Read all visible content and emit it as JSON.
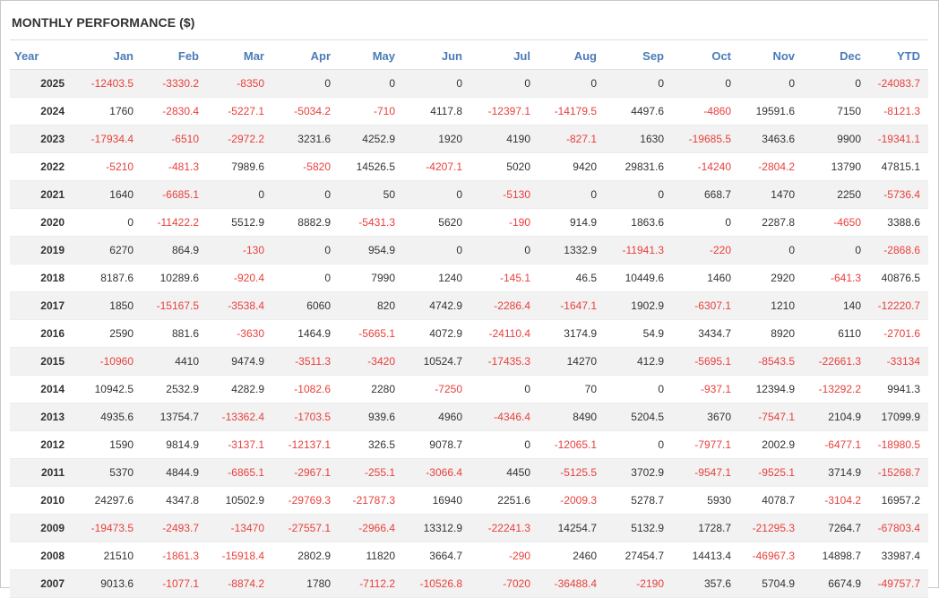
{
  "title": "MONTHLY PERFORMANCE ($)",
  "columns": [
    "Year",
    "Jan",
    "Feb",
    "Mar",
    "Apr",
    "May",
    "Jun",
    "Jul",
    "Aug",
    "Sep",
    "Oct",
    "Nov",
    "Dec",
    "YTD"
  ],
  "rows": [
    [
      "2025",
      "-12403.5",
      "-3330.2",
      "-8350",
      "0",
      "0",
      "0",
      "0",
      "0",
      "0",
      "0",
      "0",
      "0",
      "-24083.7"
    ],
    [
      "2024",
      "1760",
      "-2830.4",
      "-5227.1",
      "-5034.2",
      "-710",
      "4117.8",
      "-12397.1",
      "-14179.5",
      "4497.6",
      "-4860",
      "19591.6",
      "7150",
      "-8121.3"
    ],
    [
      "2023",
      "-17934.4",
      "-6510",
      "-2972.2",
      "3231.6",
      "4252.9",
      "1920",
      "4190",
      "-827.1",
      "1630",
      "-19685.5",
      "3463.6",
      "9900",
      "-19341.1"
    ],
    [
      "2022",
      "-5210",
      "-481.3",
      "7989.6",
      "-5820",
      "14526.5",
      "-4207.1",
      "5020",
      "9420",
      "29831.6",
      "-14240",
      "-2804.2",
      "13790",
      "47815.1"
    ],
    [
      "2021",
      "1640",
      "-6685.1",
      "0",
      "0",
      "50",
      "0",
      "-5130",
      "0",
      "0",
      "668.7",
      "1470",
      "2250",
      "-5736.4"
    ],
    [
      "2020",
      "0",
      "-11422.2",
      "5512.9",
      "8882.9",
      "-5431.3",
      "5620",
      "-190",
      "914.9",
      "1863.6",
      "0",
      "2287.8",
      "-4650",
      "3388.6"
    ],
    [
      "2019",
      "6270",
      "864.9",
      "-130",
      "0",
      "954.9",
      "0",
      "0",
      "1332.9",
      "-11941.3",
      "-220",
      "0",
      "0",
      "-2868.6"
    ],
    [
      "2018",
      "8187.6",
      "10289.6",
      "-920.4",
      "0",
      "7990",
      "1240",
      "-145.1",
      "46.5",
      "10449.6",
      "1460",
      "2920",
      "-641.3",
      "40876.5"
    ],
    [
      "2017",
      "1850",
      "-15167.5",
      "-3538.4",
      "6060",
      "820",
      "4742.9",
      "-2286.4",
      "-1647.1",
      "1902.9",
      "-6307.1",
      "1210",
      "140",
      "-12220.7"
    ],
    [
      "2016",
      "2590",
      "881.6",
      "-3630",
      "1464.9",
      "-5665.1",
      "4072.9",
      "-24110.4",
      "3174.9",
      "54.9",
      "3434.7",
      "8920",
      "6110",
      "-2701.6"
    ],
    [
      "2015",
      "-10960",
      "4410",
      "9474.9",
      "-3511.3",
      "-3420",
      "10524.7",
      "-17435.3",
      "14270",
      "412.9",
      "-5695.1",
      "-8543.5",
      "-22661.3",
      "-33134"
    ],
    [
      "2014",
      "10942.5",
      "2532.9",
      "4282.9",
      "-1082.6",
      "2280",
      "-7250",
      "0",
      "70",
      "0",
      "-937.1",
      "12394.9",
      "-13292.2",
      "9941.3"
    ],
    [
      "2013",
      "4935.6",
      "13754.7",
      "-13362.4",
      "-1703.5",
      "939.6",
      "4960",
      "-4346.4",
      "8490",
      "5204.5",
      "3670",
      "-7547.1",
      "2104.9",
      "17099.9"
    ],
    [
      "2012",
      "1590",
      "9814.9",
      "-3137.1",
      "-12137.1",
      "326.5",
      "9078.7",
      "0",
      "-12065.1",
      "0",
      "-7977.1",
      "2002.9",
      "-6477.1",
      "-18980.5"
    ],
    [
      "2011",
      "5370",
      "4844.9",
      "-6865.1",
      "-2967.1",
      "-255.1",
      "-3066.4",
      "4450",
      "-5125.5",
      "3702.9",
      "-9547.1",
      "-9525.1",
      "3714.9",
      "-15268.7"
    ],
    [
      "2010",
      "24297.6",
      "4347.8",
      "10502.9",
      "-29769.3",
      "-21787.3",
      "16940",
      "2251.6",
      "-2009.3",
      "5278.7",
      "5930",
      "4078.7",
      "-3104.2",
      "16957.2"
    ],
    [
      "2009",
      "-19473.5",
      "-2493.7",
      "-13470",
      "-27557.1",
      "-2966.4",
      "13312.9",
      "-22241.3",
      "14254.7",
      "5132.9",
      "1728.7",
      "-21295.3",
      "7264.7",
      "-67803.4"
    ],
    [
      "2008",
      "21510",
      "-1861.3",
      "-15918.4",
      "2802.9",
      "11820",
      "3664.7",
      "-290",
      "2460",
      "27454.7",
      "14413.4",
      "-46967.3",
      "14898.7",
      "33987.4"
    ],
    [
      "2007",
      "9013.6",
      "-1077.1",
      "-8874.2",
      "1780",
      "-7112.2",
      "-10526.8",
      "-7020",
      "-36488.4",
      "-2190",
      "357.6",
      "5704.9",
      "6674.9",
      "-49757.7"
    ]
  ],
  "colors": {
    "header_text": "#4a7bb7",
    "negative": "#e8403c",
    "positive": "#333333",
    "stripe": "#f2f2f2"
  }
}
